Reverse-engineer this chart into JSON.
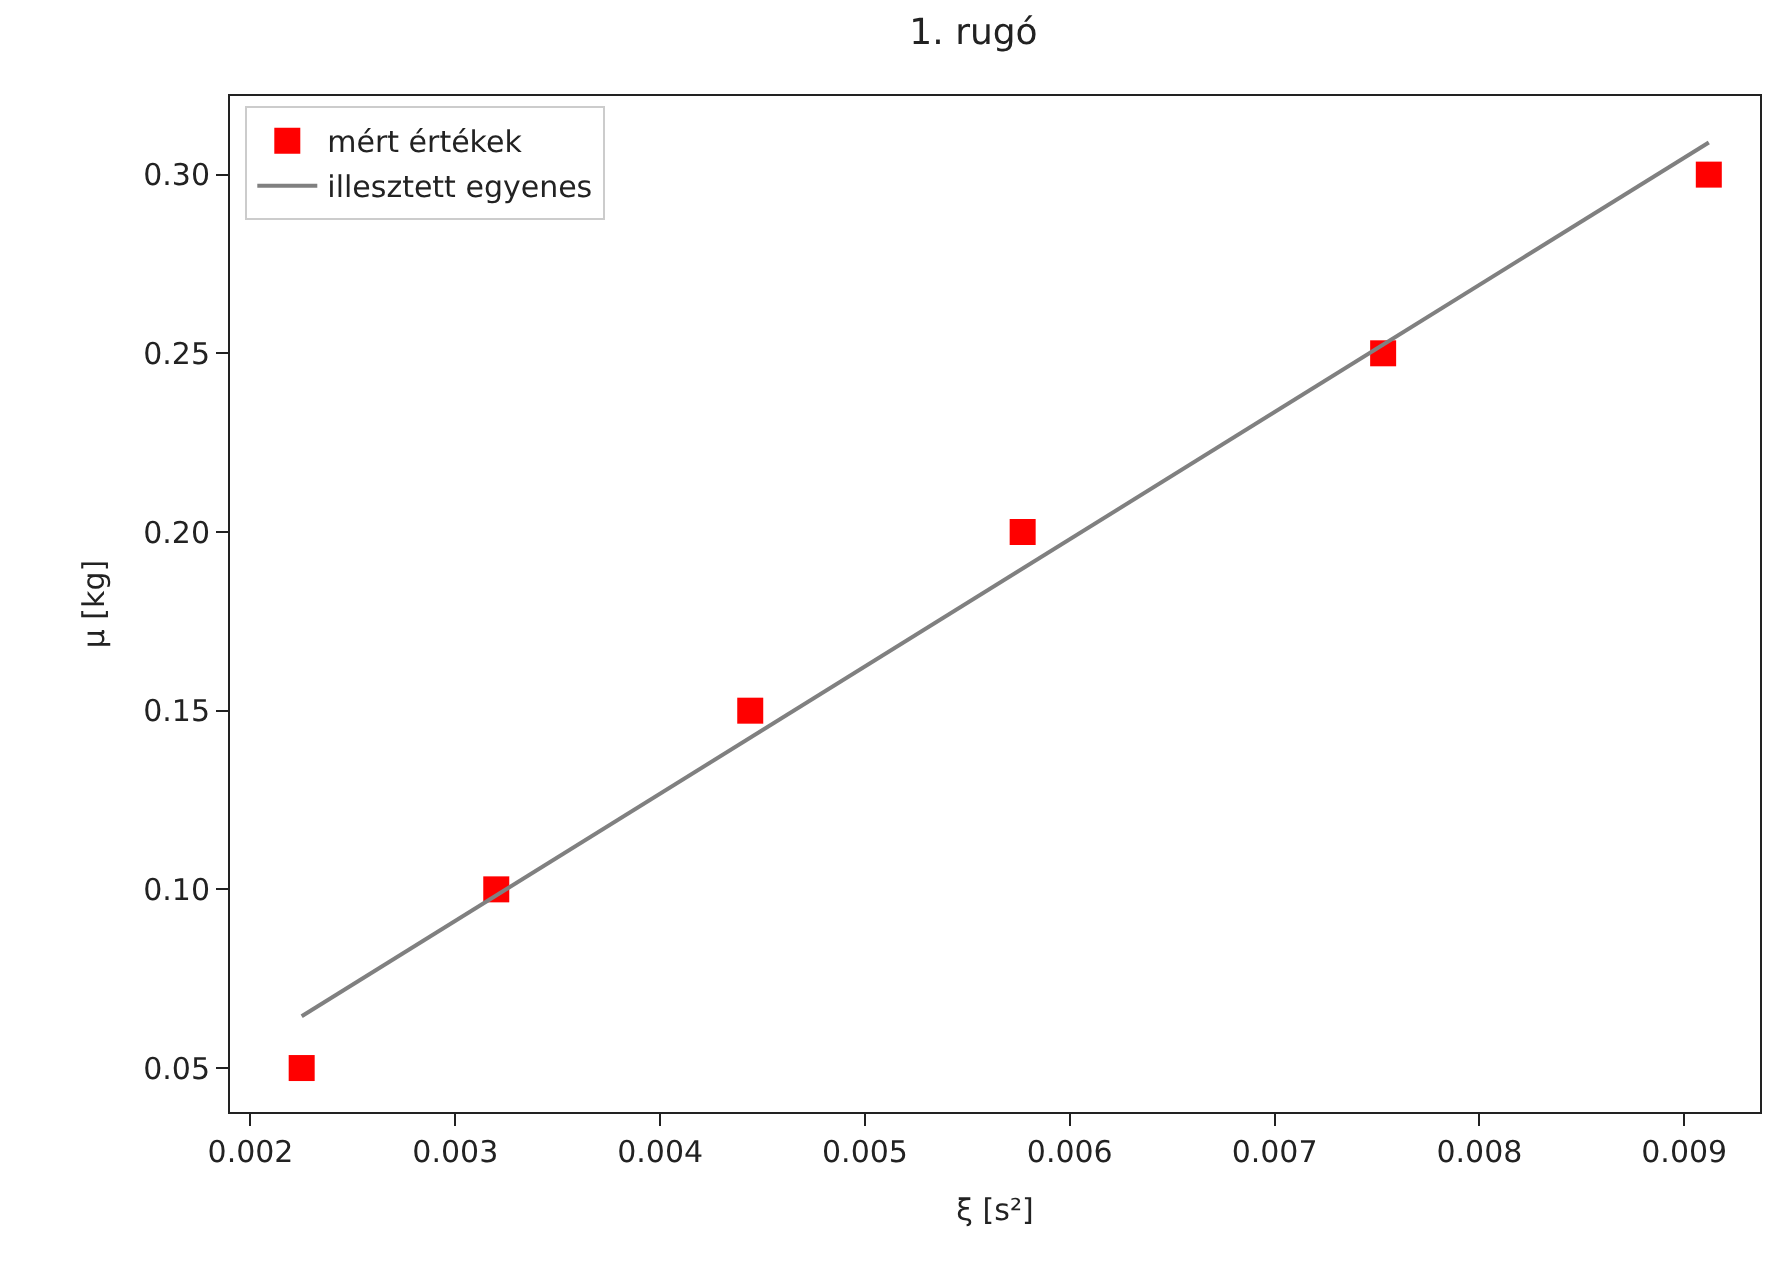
{
  "chart_data": {
    "type": "scatter",
    "title": "1. rugó",
    "xlabel": "ξ [s²]",
    "ylabel": "μ [kg]",
    "xlim": [
      0.0019,
      0.00937
    ],
    "ylim": [
      0.0377,
      0.322
    ],
    "xticks": [
      0.002,
      0.003,
      0.004,
      0.005,
      0.006,
      0.007,
      0.008,
      0.009
    ],
    "yticks": [
      {
        "value": 0.05,
        "label": "0.05"
      },
      {
        "value": 0.1,
        "label": "0.10"
      },
      {
        "value": 0.15,
        "label": "0.15"
      },
      {
        "value": 0.2,
        "label": "0.20"
      },
      {
        "value": 0.25,
        "label": "0.25"
      },
      {
        "value": 0.3,
        "label": "0.30"
      }
    ],
    "legend": "top left",
    "series": [
      {
        "name": "mért értékek",
        "marker": "square",
        "color": "#ff0000",
        "x": [
          0.00225,
          0.0032,
          0.00444,
          0.00577,
          0.00753,
          0.00912
        ],
        "values": [
          0.05,
          0.1,
          0.15,
          0.2,
          0.25,
          0.3
        ]
      },
      {
        "name": "illesztett egyenes",
        "type": "line",
        "color": "#808080",
        "x": [
          0.00225,
          0.00912
        ],
        "values": [
          0.0645,
          0.309
        ]
      }
    ]
  }
}
